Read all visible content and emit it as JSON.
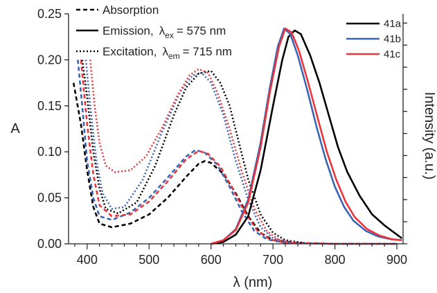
{
  "chart_data": {
    "type": "line",
    "xlabel": "λ (nm)",
    "ylabel_left": "A",
    "ylabel_right": "Intensity (a.u.)",
    "xlim": [
      370,
      910
    ],
    "ylim_left": [
      0,
      0.25
    ],
    "ylim_right": [
      0,
      1.0
    ],
    "grid": false,
    "x_ticks": [
      400,
      500,
      600,
      700,
      800,
      900
    ],
    "y_ticks_left": [
      "0.00",
      "0.05",
      "0.10",
      "0.15",
      "0.20",
      "0.25"
    ],
    "curve_type_legend": {
      "absorption": "Absorption",
      "emission_prefix": "Emission,",
      "emission_lambda": "λ",
      "emission_sub": "ex",
      "emission_suffix": "= 575 nm",
      "excitation_prefix": "Excitation,",
      "excitation_lambda": "λ",
      "excitation_sub": "em",
      "excitation_suffix": "= 715 nm"
    },
    "compound_legend": [
      {
        "label": "41a",
        "color": "#000000"
      },
      {
        "label": "41b",
        "color": "#3b64b4"
      },
      {
        "label": "41c",
        "color": "#e8343a"
      }
    ],
    "series": [
      {
        "compound": "41a",
        "kind": "absorption",
        "color": "#000000",
        "points": [
          [
            378,
            0.175
          ],
          [
            390,
            0.13
          ],
          [
            400,
            0.08
          ],
          [
            410,
            0.04
          ],
          [
            420,
            0.022
          ],
          [
            440,
            0.018
          ],
          [
            470,
            0.022
          ],
          [
            500,
            0.032
          ],
          [
            530,
            0.05
          ],
          [
            560,
            0.073
          ],
          [
            580,
            0.087
          ],
          [
            590,
            0.09
          ],
          [
            600,
            0.088
          ],
          [
            620,
            0.076
          ],
          [
            640,
            0.055
          ],
          [
            660,
            0.03
          ],
          [
            680,
            0.012
          ],
          [
            700,
            0.004
          ],
          [
            740,
            0.001
          ],
          [
            800,
            0.0
          ],
          [
            900,
            0.0
          ]
        ]
      },
      {
        "compound": "41b",
        "kind": "absorption",
        "color": "#3b64b4",
        "points": [
          [
            385,
            0.2
          ],
          [
            392,
            0.15
          ],
          [
            400,
            0.09
          ],
          [
            410,
            0.05
          ],
          [
            420,
            0.03
          ],
          [
            440,
            0.026
          ],
          [
            470,
            0.034
          ],
          [
            500,
            0.05
          ],
          [
            530,
            0.072
          ],
          [
            560,
            0.095
          ],
          [
            575,
            0.102
          ],
          [
            590,
            0.099
          ],
          [
            610,
            0.086
          ],
          [
            630,
            0.062
          ],
          [
            650,
            0.035
          ],
          [
            670,
            0.014
          ],
          [
            690,
            0.005
          ],
          [
            720,
            0.001
          ],
          [
            800,
            0.0
          ],
          [
            900,
            0.0
          ]
        ]
      },
      {
        "compound": "41c",
        "kind": "absorption",
        "color": "#e8343a",
        "points": [
          [
            390,
            0.2
          ],
          [
            400,
            0.13
          ],
          [
            410,
            0.075
          ],
          [
            420,
            0.042
          ],
          [
            440,
            0.03
          ],
          [
            470,
            0.032
          ],
          [
            500,
            0.046
          ],
          [
            530,
            0.068
          ],
          [
            560,
            0.092
          ],
          [
            580,
            0.101
          ],
          [
            595,
            0.098
          ],
          [
            615,
            0.084
          ],
          [
            635,
            0.06
          ],
          [
            655,
            0.034
          ],
          [
            675,
            0.014
          ],
          [
            695,
            0.005
          ],
          [
            720,
            0.001
          ],
          [
            800,
            0.0
          ],
          [
            900,
            0.0
          ]
        ]
      },
      {
        "compound": "41a",
        "kind": "excitation",
        "color": "#000000",
        "points": [
          [
            392,
            0.2
          ],
          [
            400,
            0.16
          ],
          [
            410,
            0.1
          ],
          [
            420,
            0.06
          ],
          [
            430,
            0.038
          ],
          [
            450,
            0.033
          ],
          [
            480,
            0.045
          ],
          [
            510,
            0.085
          ],
          [
            540,
            0.14
          ],
          [
            560,
            0.17
          ],
          [
            580,
            0.185
          ],
          [
            600,
            0.188
          ],
          [
            615,
            0.175
          ],
          [
            630,
            0.15
          ],
          [
            645,
            0.11
          ],
          [
            660,
            0.07
          ],
          [
            680,
            0.032
          ],
          [
            700,
            0.012
          ],
          [
            720,
            0.004
          ],
          [
            750,
            0.001
          ]
        ]
      },
      {
        "compound": "41b",
        "kind": "excitation",
        "color": "#3b64b4",
        "points": [
          [
            398,
            0.2
          ],
          [
            405,
            0.15
          ],
          [
            415,
            0.09
          ],
          [
            425,
            0.055
          ],
          [
            440,
            0.038
          ],
          [
            460,
            0.04
          ],
          [
            490,
            0.07
          ],
          [
            520,
            0.12
          ],
          [
            550,
            0.165
          ],
          [
            570,
            0.183
          ],
          [
            585,
            0.186
          ],
          [
            600,
            0.175
          ],
          [
            620,
            0.14
          ],
          [
            640,
            0.09
          ],
          [
            660,
            0.048
          ],
          [
            680,
            0.018
          ],
          [
            700,
            0.006
          ],
          [
            730,
            0.001
          ]
        ]
      },
      {
        "compound": "41c",
        "kind": "excitation",
        "color": "#e8343a",
        "points": [
          [
            405,
            0.2
          ],
          [
            412,
            0.15
          ],
          [
            420,
            0.11
          ],
          [
            430,
            0.085
          ],
          [
            445,
            0.078
          ],
          [
            470,
            0.08
          ],
          [
            495,
            0.095
          ],
          [
            520,
            0.125
          ],
          [
            545,
            0.16
          ],
          [
            565,
            0.183
          ],
          [
            580,
            0.19
          ],
          [
            595,
            0.186
          ],
          [
            610,
            0.165
          ],
          [
            630,
            0.125
          ],
          [
            650,
            0.078
          ],
          [
            670,
            0.038
          ],
          [
            690,
            0.014
          ],
          [
            710,
            0.004
          ],
          [
            740,
            0.001
          ]
        ]
      },
      {
        "compound": "41a",
        "kind": "emission",
        "color": "#000000",
        "points": [
          [
            600,
            0.0
          ],
          [
            620,
            0.002
          ],
          [
            640,
            0.01
          ],
          [
            660,
            0.03
          ],
          [
            680,
            0.08
          ],
          [
            700,
            0.15
          ],
          [
            715,
            0.2
          ],
          [
            725,
            0.225
          ],
          [
            735,
            0.232
          ],
          [
            745,
            0.228
          ],
          [
            760,
            0.205
          ],
          [
            775,
            0.175
          ],
          [
            790,
            0.14
          ],
          [
            805,
            0.105
          ],
          [
            820,
            0.078
          ],
          [
            840,
            0.052
          ],
          [
            860,
            0.032
          ],
          [
            880,
            0.02
          ],
          [
            900,
            0.01
          ],
          [
            908,
            0.006
          ]
        ]
      },
      {
        "compound": "41b",
        "kind": "emission",
        "color": "#3b64b4",
        "points": [
          [
            600,
            0.0
          ],
          [
            620,
            0.004
          ],
          [
            640,
            0.016
          ],
          [
            660,
            0.048
          ],
          [
            680,
            0.11
          ],
          [
            695,
            0.17
          ],
          [
            708,
            0.215
          ],
          [
            718,
            0.234
          ],
          [
            728,
            0.228
          ],
          [
            740,
            0.205
          ],
          [
            755,
            0.168
          ],
          [
            770,
            0.128
          ],
          [
            785,
            0.092
          ],
          [
            800,
            0.062
          ],
          [
            815,
            0.04
          ],
          [
            830,
            0.025
          ],
          [
            850,
            0.014
          ],
          [
            870,
            0.008
          ],
          [
            890,
            0.005
          ],
          [
            908,
            0.004
          ]
        ]
      },
      {
        "compound": "41c",
        "kind": "emission",
        "color": "#e8343a",
        "points": [
          [
            600,
            0.0
          ],
          [
            620,
            0.004
          ],
          [
            640,
            0.015
          ],
          [
            660,
            0.045
          ],
          [
            680,
            0.105
          ],
          [
            695,
            0.165
          ],
          [
            710,
            0.215
          ],
          [
            720,
            0.234
          ],
          [
            730,
            0.23
          ],
          [
            742,
            0.21
          ],
          [
            757,
            0.175
          ],
          [
            772,
            0.137
          ],
          [
            787,
            0.1
          ],
          [
            802,
            0.07
          ],
          [
            817,
            0.046
          ],
          [
            832,
            0.029
          ],
          [
            852,
            0.016
          ],
          [
            872,
            0.009
          ],
          [
            892,
            0.005
          ],
          [
            908,
            0.004
          ]
        ]
      }
    ]
  }
}
